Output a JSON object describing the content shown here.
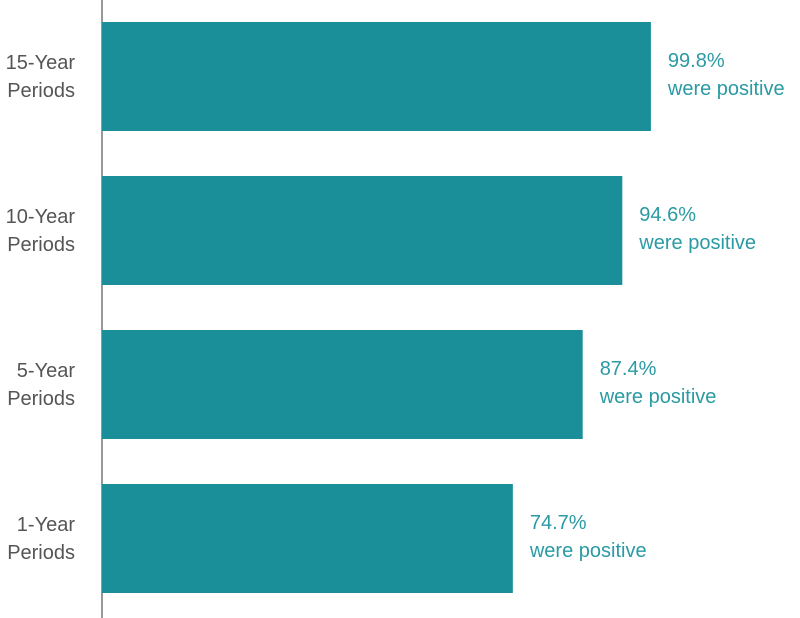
{
  "chart_data": {
    "type": "hbar",
    "categories": [
      "15-Year Periods",
      "10-Year Periods",
      "5-Year Periods",
      "1-Year Periods"
    ],
    "values": [
      99.8,
      94.6,
      87.4,
      74.7
    ],
    "value_labels": [
      "99.8%",
      "94.6%",
      "87.4%",
      "74.7%"
    ],
    "value_note": "were positive",
    "color": "#1a8f9a",
    "label_color": "#2a9aa3",
    "xlim": [
      0,
      100
    ]
  }
}
